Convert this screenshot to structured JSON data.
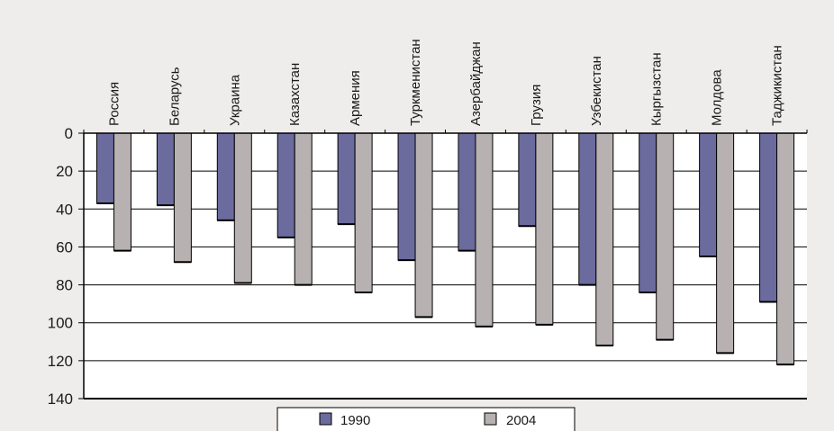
{
  "chart_data": {
    "type": "bar",
    "orientation": "vertical-inverted",
    "categories": [
      "Россия",
      "Беларусь",
      "Украина",
      "Казахстан",
      "Армения",
      "Туркменистан",
      "Азербайджан",
      "Грузия",
      "Узбекистан",
      "Кыргызстан",
      "Молдова",
      "Таджикистан"
    ],
    "series": [
      {
        "name": "1990",
        "values": [
          37,
          38,
          46,
          55,
          48,
          67,
          62,
          49,
          80,
          84,
          65,
          89
        ],
        "color": "#6b6b9e"
      },
      {
        "name": "2004",
        "values": [
          62,
          68,
          79,
          80,
          84,
          97,
          102,
          101,
          112,
          109,
          116,
          122
        ],
        "color": "#b8b1b1"
      }
    ],
    "yticks": [
      "0",
      "20",
      "40",
      "60",
      "80",
      "100",
      "120",
      "140"
    ],
    "ylim": [
      0,
      140
    ],
    "y_inverted": true,
    "category_labels_position": "top",
    "grid": true,
    "legend_position": "bottom"
  }
}
